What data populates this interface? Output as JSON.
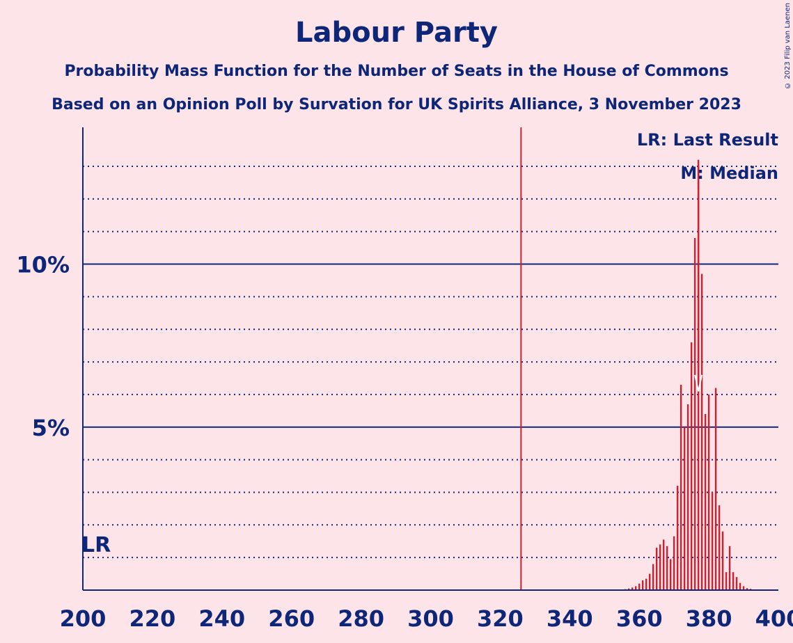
{
  "title": "Labour Party",
  "subtitle1": "Probability Mass Function for the Number of Seats in the House of Commons",
  "subtitle2": "Based on an Opinion Poll by Survation for UK Spirits Alliance, 3 November 2023",
  "copyright": "© 2023 Filip van Laenen",
  "legend": {
    "lr": "LR: Last Result",
    "median": "M: Median"
  },
  "markers": {
    "lr_label": "LR",
    "median_label": "M"
  },
  "colors": {
    "background": "#fde4e8",
    "axis": "#0e2677",
    "bar": "#cc1f2f",
    "majority_line": "#cc1f2f"
  },
  "chart_data": {
    "type": "bar",
    "xlim": [
      200,
      400
    ],
    "ylim": [
      0,
      14
    ],
    "x_ticks": [
      200,
      220,
      240,
      260,
      280,
      300,
      320,
      340,
      360,
      380,
      400
    ],
    "y_ticks": [
      {
        "value": 5,
        "label": "5%"
      },
      {
        "value": 10,
        "label": "10%"
      }
    ],
    "y_minor_grid": [
      1,
      2,
      3,
      4,
      6,
      7,
      8,
      9,
      11,
      12,
      13
    ],
    "majority_line": 326,
    "last_result": 202,
    "median": 377,
    "x": [
      355,
      356,
      357,
      358,
      359,
      360,
      361,
      362,
      363,
      364,
      365,
      366,
      367,
      368,
      369,
      370,
      371,
      372,
      373,
      374,
      375,
      376,
      377,
      378,
      379,
      380,
      381,
      382,
      383,
      384,
      385,
      386,
      387,
      388,
      389,
      390,
      391,
      392,
      393,
      394,
      395
    ],
    "values": [
      0.02,
      0.03,
      0.05,
      0.08,
      0.12,
      0.2,
      0.3,
      0.35,
      0.5,
      0.8,
      1.3,
      1.4,
      1.55,
      1.35,
      0.95,
      1.65,
      3.2,
      6.3,
      5.0,
      5.7,
      7.6,
      10.8,
      13.0,
      9.7,
      5.4,
      6.0,
      3.0,
      6.2,
      2.6,
      1.8,
      0.55,
      1.35,
      0.55,
      0.4,
      0.22,
      0.12,
      0.06,
      0.04,
      0.02,
      0.01,
      0.01
    ]
  }
}
